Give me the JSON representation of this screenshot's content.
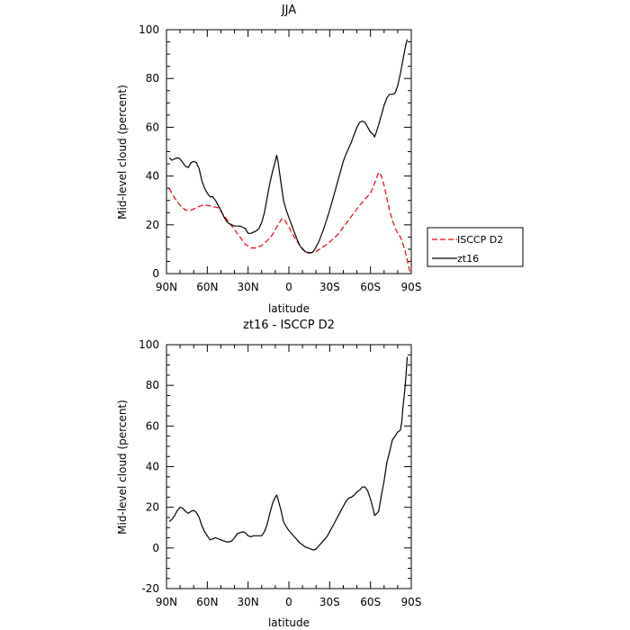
{
  "chart_data": [
    {
      "type": "line",
      "title": "JJA",
      "xlabel": "latitude",
      "ylabel": "Mid-level cloud (percent)",
      "ylim": [
        0,
        100
      ],
      "yticks": [
        0,
        20,
        40,
        60,
        80,
        100
      ],
      "xlim": [
        90,
        -90
      ],
      "xticks": [
        {
          "value": 90,
          "label": "90N"
        },
        {
          "value": 60,
          "label": "60N"
        },
        {
          "value": 30,
          "label": "30N"
        },
        {
          "value": 0,
          "label": "0"
        },
        {
          "value": -30,
          "label": "30S"
        },
        {
          "value": -60,
          "label": "60S"
        },
        {
          "value": -90,
          "label": "90S"
        }
      ],
      "grid": false,
      "legend_position": "outside-right",
      "series": [
        {
          "name": "ISCCP D2",
          "color": "#e8000b",
          "dash": "dashed",
          "points": [
            [
              88,
              35
            ],
            [
              84,
              31
            ],
            [
              80,
              28
            ],
            [
              76,
              26
            ],
            [
              72,
              26
            ],
            [
              68,
              27
            ],
            [
              64,
              28
            ],
            [
              60,
              28
            ],
            [
              56,
              27.5
            ],
            [
              52,
              27
            ],
            [
              48,
              24
            ],
            [
              44,
              21
            ],
            [
              40,
              18
            ],
            [
              36,
              15
            ],
            [
              32,
              12
            ],
            [
              28,
              10.5
            ],
            [
              24,
              10.5
            ],
            [
              20,
              11.5
            ],
            [
              16,
              13.5
            ],
            [
              12,
              16
            ],
            [
              8,
              20
            ],
            [
              5,
              22.5
            ],
            [
              3,
              22
            ],
            [
              0,
              19
            ],
            [
              -4,
              15
            ],
            [
              -8,
              11.5
            ],
            [
              -12,
              9
            ],
            [
              -16,
              8.5
            ],
            [
              -20,
              9
            ],
            [
              -24,
              10.5
            ],
            [
              -28,
              12
            ],
            [
              -32,
              14
            ],
            [
              -36,
              16
            ],
            [
              -40,
              19
            ],
            [
              -44,
              22
            ],
            [
              -48,
              25
            ],
            [
              -52,
              28
            ],
            [
              -56,
              30.5
            ],
            [
              -60,
              33
            ],
            [
              -62,
              35.5
            ],
            [
              -64,
              38.5
            ],
            [
              -66,
              41.5
            ],
            [
              -68,
              40
            ],
            [
              -70,
              36
            ],
            [
              -72,
              31
            ],
            [
              -74,
              26
            ],
            [
              -76,
              22
            ],
            [
              -78,
              19
            ],
            [
              -80,
              16.5
            ],
            [
              -82,
              15
            ],
            [
              -84,
              12
            ],
            [
              -86,
              8
            ],
            [
              -88,
              3
            ],
            [
              -89,
              0.5
            ]
          ]
        },
        {
          "name": "zt16",
          "color": "#000000",
          "dash": "solid",
          "points": [
            [
              88,
              47.5
            ],
            [
              86,
              46.5
            ],
            [
              84,
              47
            ],
            [
              82,
              47.5
            ],
            [
              80,
              47
            ],
            [
              78,
              45.5
            ],
            [
              76,
              44
            ],
            [
              74,
              43.5
            ],
            [
              72,
              45.5
            ],
            [
              70,
              46
            ],
            [
              68,
              45.5
            ],
            [
              66,
              43
            ],
            [
              64,
              38
            ],
            [
              62,
              35
            ],
            [
              60,
              33
            ],
            [
              58,
              31.5
            ],
            [
              56,
              31.5
            ],
            [
              54,
              30
            ],
            [
              52,
              28
            ],
            [
              50,
              26
            ],
            [
              48,
              23.5
            ],
            [
              46,
              21.5
            ],
            [
              44,
              20.5
            ],
            [
              42,
              20
            ],
            [
              40,
              19.5
            ],
            [
              38,
              19.5
            ],
            [
              36,
              19.5
            ],
            [
              34,
              19
            ],
            [
              32,
              18.5
            ],
            [
              30,
              16.5
            ],
            [
              28,
              16.5
            ],
            [
              26,
              17
            ],
            [
              24,
              17.5
            ],
            [
              22,
              18.5
            ],
            [
              20,
              21
            ],
            [
              18,
              25
            ],
            [
              16,
              31
            ],
            [
              14,
              37
            ],
            [
              12,
              42
            ],
            [
              10,
              46
            ],
            [
              9,
              48.5
            ],
            [
              8,
              46
            ],
            [
              6,
              38
            ],
            [
              4,
              30
            ],
            [
              2,
              26
            ],
            [
              0,
              23
            ],
            [
              -2,
              20
            ],
            [
              -4,
              17
            ],
            [
              -6,
              14
            ],
            [
              -8,
              11.5
            ],
            [
              -10,
              10
            ],
            [
              -12,
              9
            ],
            [
              -14,
              8.5
            ],
            [
              -16,
              8.5
            ],
            [
              -18,
              9
            ],
            [
              -20,
              11
            ],
            [
              -22,
              13
            ],
            [
              -24,
              16
            ],
            [
              -26,
              19
            ],
            [
              -28,
              22.5
            ],
            [
              -30,
              26
            ],
            [
              -32,
              30
            ],
            [
              -34,
              34
            ],
            [
              -36,
              38
            ],
            [
              -38,
              42
            ],
            [
              -40,
              46
            ],
            [
              -42,
              49
            ],
            [
              -44,
              51.5
            ],
            [
              -46,
              54
            ],
            [
              -48,
              57
            ],
            [
              -50,
              60
            ],
            [
              -52,
              62
            ],
            [
              -54,
              62.5
            ],
            [
              -56,
              62
            ],
            [
              -58,
              60
            ],
            [
              -60,
              58
            ],
            [
              -62,
              57
            ],
            [
              -63,
              56
            ],
            [
              -64,
              57.5
            ],
            [
              -66,
              61
            ],
            [
              -68,
              65
            ],
            [
              -70,
              69
            ],
            [
              -72,
              72
            ],
            [
              -74,
              73.5
            ],
            [
              -76,
              73.5
            ],
            [
              -78,
              74
            ],
            [
              -80,
              77
            ],
            [
              -82,
              82
            ],
            [
              -84,
              88
            ],
            [
              -86,
              94
            ],
            [
              -87,
              96
            ]
          ]
        }
      ]
    },
    {
      "type": "line",
      "title": "zt16 - ISCCP D2",
      "xlabel": "latitude",
      "ylabel": "Mid-level cloud (percent)",
      "ylim": [
        -20,
        100
      ],
      "yticks": [
        -20,
        0,
        20,
        40,
        60,
        80,
        100
      ],
      "xlim": [
        90,
        -90
      ],
      "xticks": [
        {
          "value": 90,
          "label": "90N"
        },
        {
          "value": 60,
          "label": "60N"
        },
        {
          "value": 30,
          "label": "30N"
        },
        {
          "value": 0,
          "label": "0"
        },
        {
          "value": -30,
          "label": "30S"
        },
        {
          "value": -60,
          "label": "60S"
        },
        {
          "value": -90,
          "label": "90S"
        }
      ],
      "grid": false,
      "series": [
        {
          "color": "#000000",
          "dash": "solid",
          "points": [
            [
              88,
              13
            ],
            [
              86,
              14
            ],
            [
              84,
              16
            ],
            [
              82,
              18.5
            ],
            [
              80,
              20
            ],
            [
              78,
              19.5
            ],
            [
              76,
              18
            ],
            [
              74,
              17
            ],
            [
              72,
              18
            ],
            [
              70,
              18.5
            ],
            [
              68,
              17.5
            ],
            [
              66,
              15
            ],
            [
              64,
              11
            ],
            [
              62,
              8
            ],
            [
              60,
              6
            ],
            [
              58,
              4
            ],
            [
              56,
              4.5
            ],
            [
              54,
              5
            ],
            [
              52,
              4.5
            ],
            [
              50,
              4
            ],
            [
              48,
              3.5
            ],
            [
              46,
              3
            ],
            [
              44,
              3
            ],
            [
              42,
              3.5
            ],
            [
              40,
              5
            ],
            [
              38,
              7
            ],
            [
              36,
              7.5
            ],
            [
              34,
              8
            ],
            [
              32,
              7.5
            ],
            [
              30,
              6
            ],
            [
              28,
              5.5
            ],
            [
              26,
              6
            ],
            [
              24,
              6
            ],
            [
              22,
              6
            ],
            [
              20,
              6
            ],
            [
              18,
              8
            ],
            [
              16,
              11.5
            ],
            [
              14,
              17
            ],
            [
              12,
              22
            ],
            [
              10,
              25
            ],
            [
              9,
              26
            ],
            [
              8,
              24
            ],
            [
              6,
              19
            ],
            [
              4,
              13
            ],
            [
              2,
              10.5
            ],
            [
              0,
              8.5
            ],
            [
              -2,
              7
            ],
            [
              -4,
              5.5
            ],
            [
              -6,
              4
            ],
            [
              -8,
              2.5
            ],
            [
              -10,
              1.5
            ],
            [
              -12,
              0.5
            ],
            [
              -14,
              0
            ],
            [
              -16,
              -0.5
            ],
            [
              -18,
              -1
            ],
            [
              -20,
              -0.5
            ],
            [
              -22,
              1
            ],
            [
              -24,
              2.5
            ],
            [
              -26,
              4
            ],
            [
              -28,
              5.5
            ],
            [
              -30,
              8
            ],
            [
              -32,
              10.5
            ],
            [
              -34,
              13
            ],
            [
              -36,
              15.5
            ],
            [
              -38,
              18
            ],
            [
              -40,
              20.5
            ],
            [
              -42,
              23
            ],
            [
              -44,
              24.5
            ],
            [
              -46,
              25
            ],
            [
              -48,
              26
            ],
            [
              -50,
              27.5
            ],
            [
              -52,
              28.5
            ],
            [
              -54,
              30
            ],
            [
              -56,
              30
            ],
            [
              -58,
              28
            ],
            [
              -60,
              24
            ],
            [
              -62,
              19
            ],
            [
              -63,
              16
            ],
            [
              -64,
              16.5
            ],
            [
              -66,
              18
            ],
            [
              -68,
              26
            ],
            [
              -70,
              33
            ],
            [
              -72,
              42
            ],
            [
              -74,
              47
            ],
            [
              -76,
              53
            ],
            [
              -78,
              55
            ],
            [
              -80,
              57
            ],
            [
              -82,
              58
            ],
            [
              -83,
              62
            ],
            [
              -84,
              70
            ],
            [
              -85,
              76
            ],
            [
              -86,
              84
            ],
            [
              -87,
              94
            ]
          ]
        }
      ]
    }
  ]
}
